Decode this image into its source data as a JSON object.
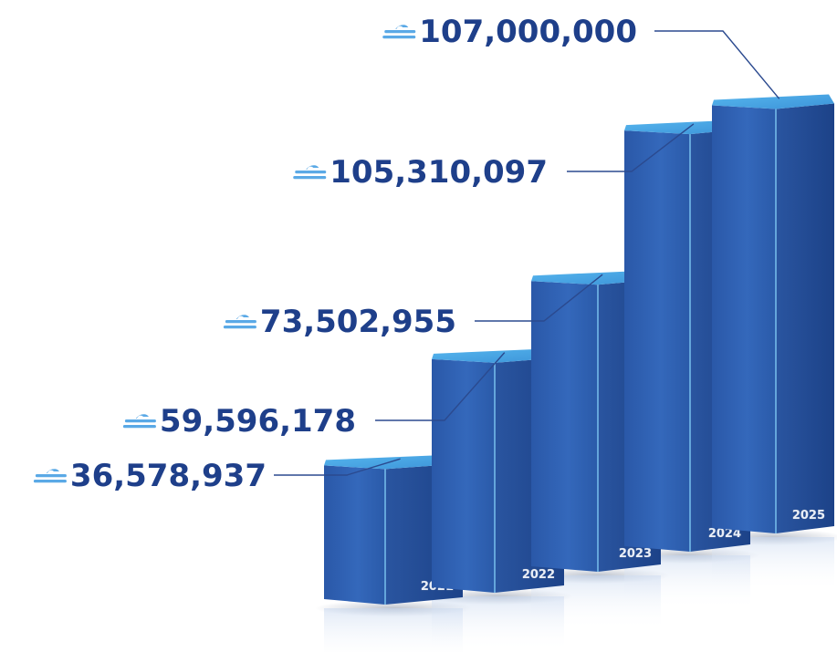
{
  "colors": {
    "bar_front": "#2f61b2",
    "bar_side": "#1f4a92",
    "bar_top": "#4aa8e6",
    "value_text": "#1e3f8a",
    "currency_icon": "#5aa9e6",
    "leader_line": "#2b4a8f"
  },
  "currency_icon": "coin-stack-icon",
  "chart_data": {
    "type": "bar",
    "categories": [
      "2021",
      "2022",
      "2023",
      "2024",
      "2025"
    ],
    "values": [
      36578937,
      59596178,
      73502955,
      105310097,
      107000000
    ],
    "value_labels": [
      "36,578,937",
      "59,596,178",
      "73,502,955",
      "105,310,097",
      "107,000,000"
    ],
    "title": "",
    "xlabel": "",
    "ylabel": "",
    "ylim": [
      0,
      110000000
    ],
    "grid": false,
    "legend": "none",
    "style": "3d-columns"
  }
}
